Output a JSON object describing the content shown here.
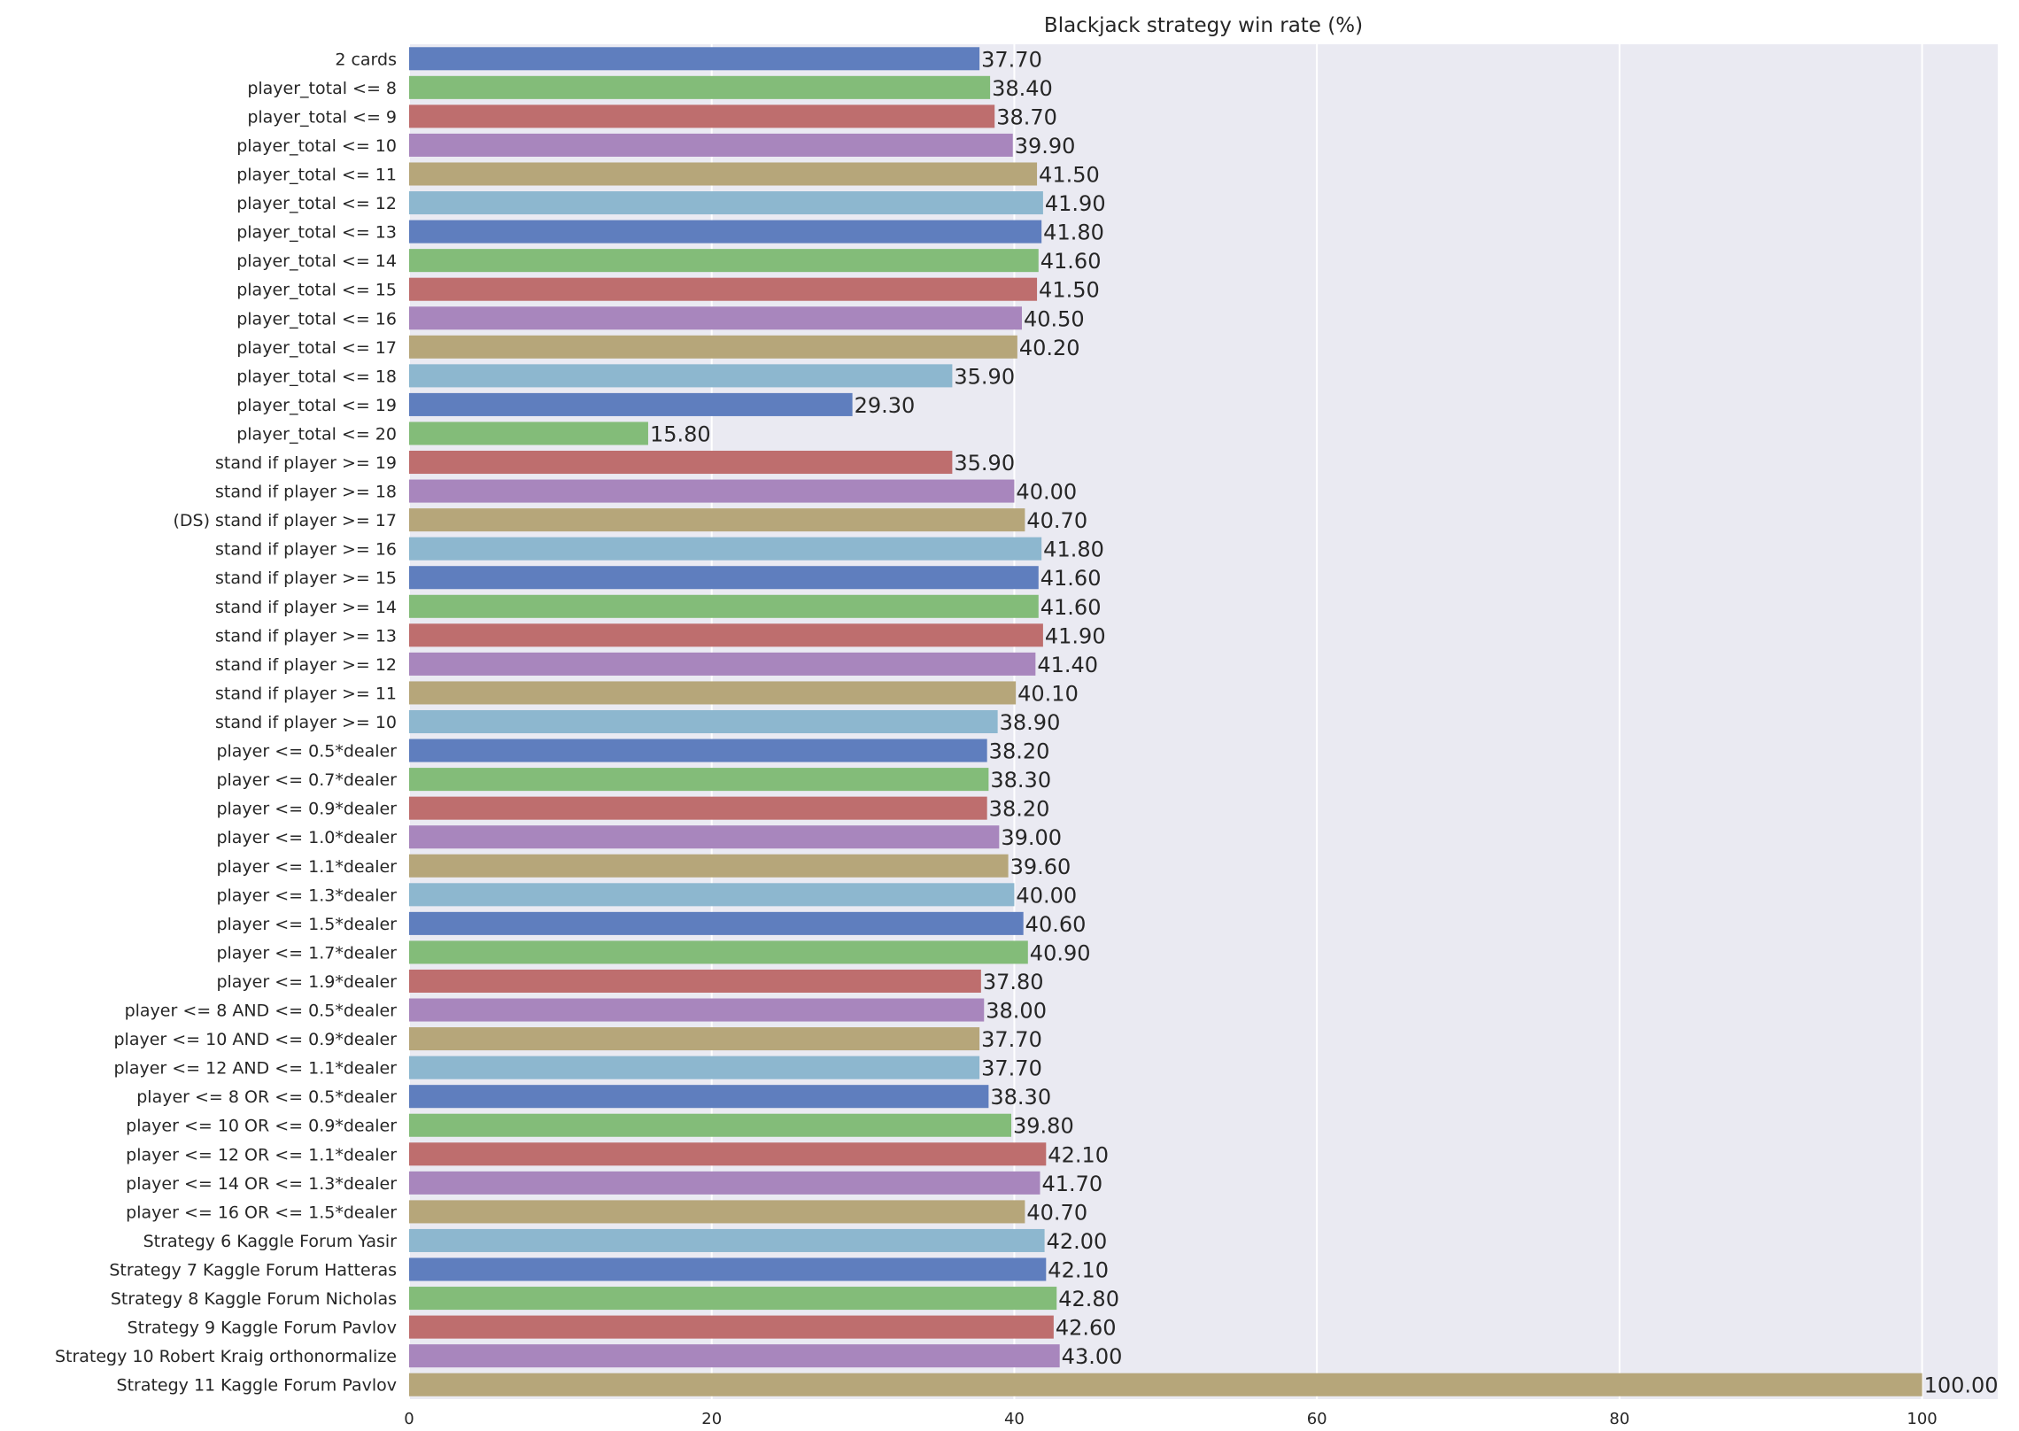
{
  "chart_data": {
    "type": "bar",
    "orientation": "horizontal",
    "title": "Blackjack strategy win rate (%)",
    "xlabel": "",
    "ylabel": "",
    "xlim": [
      0,
      105
    ],
    "xticks": [
      0,
      20,
      40,
      60,
      80,
      100
    ],
    "grid": true,
    "legend": "none",
    "value_label_format": "two decimals",
    "palette": [
      "#5f7ebe",
      "#83bc79",
      "#be6e6e",
      "#a886bd",
      "#b6a67a",
      "#8db7cf"
    ],
    "plot_background": "#eaeaf2",
    "categories": [
      "2 cards",
      "player_total <= 8",
      "player_total <= 9",
      "player_total <= 10",
      "player_total <= 11",
      "player_total <= 12",
      "player_total <= 13",
      "player_total <= 14",
      "player_total <= 15",
      "player_total <= 16",
      "player_total <= 17",
      "player_total <= 18",
      "player_total <= 19",
      "player_total <= 20",
      "stand if player >= 19",
      "stand if player >= 18",
      "(DS) stand if player >= 17",
      "stand if player >= 16",
      "stand if player >= 15",
      "stand if player >= 14",
      "stand if player >= 13",
      "stand if player >= 12",
      "stand if player >= 11",
      "stand if player >= 10",
      "player <= 0.5*dealer",
      "player <= 0.7*dealer",
      "player <= 0.9*dealer",
      "player <= 1.0*dealer",
      "player <= 1.1*dealer",
      "player <= 1.3*dealer",
      "player <= 1.5*dealer",
      "player <= 1.7*dealer",
      "player <= 1.9*dealer",
      "player <= 8 AND <= 0.5*dealer",
      "player <= 10 AND <= 0.9*dealer",
      "player <= 12 AND <= 1.1*dealer",
      "player <= 8 OR <= 0.5*dealer",
      "player <= 10 OR <= 0.9*dealer",
      "player <= 12 OR <= 1.1*dealer",
      "player <= 14 OR <= 1.3*dealer",
      "player <= 16 OR <= 1.5*dealer",
      "Strategy 6 Kaggle Forum Yasir",
      "Strategy 7 Kaggle Forum Hatteras",
      "Strategy 8 Kaggle Forum Nicholas",
      "Strategy 9 Kaggle Forum Pavlov",
      "Strategy 10 Robert Kraig orthonormalize",
      "Strategy 11 Kaggle Forum Pavlov"
    ],
    "values": [
      37.7,
      38.4,
      38.7,
      39.9,
      41.5,
      41.9,
      41.8,
      41.6,
      41.5,
      40.5,
      40.2,
      35.9,
      29.3,
      15.8,
      35.9,
      40.0,
      40.7,
      41.8,
      41.6,
      41.6,
      41.9,
      41.4,
      40.1,
      38.9,
      38.2,
      38.3,
      38.2,
      39.0,
      39.6,
      40.0,
      40.6,
      40.9,
      37.8,
      38.0,
      37.7,
      37.7,
      38.3,
      39.8,
      42.1,
      41.7,
      40.7,
      42.0,
      42.1,
      42.8,
      42.6,
      43.0,
      100.0
    ]
  }
}
